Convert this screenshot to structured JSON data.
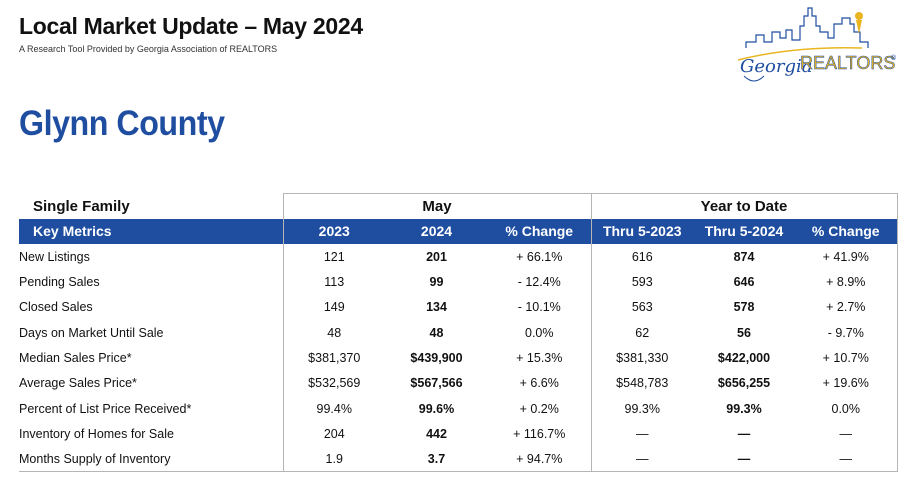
{
  "header": {
    "title": "Local Market Update – May 2024",
    "subtitle": "A Research Tool Provided by Georgia Association of REALTORS"
  },
  "logo": {
    "word1": "Georgia",
    "word2": "REALTORS",
    "trademark": "®",
    "colors": {
      "script": "#1f4ea1",
      "realtors": "#e9b521",
      "skyline": "#1f4ea1"
    }
  },
  "county": "Glynn County",
  "table": {
    "property_type": "Single Family",
    "group_month": "May",
    "group_ytd": "Year to Date",
    "columns": [
      "Key Metrics",
      "2023",
      "2024",
      "% Change",
      "Thru 5-2023",
      "Thru 5-2024",
      "% Change"
    ],
    "rows": [
      {
        "metric": "New Listings",
        "m2023": "121",
        "m2024": "201",
        "mchg": "+ 66.1%",
        "y2023": "616",
        "y2024": "874",
        "ychg": "+ 41.9%"
      },
      {
        "metric": "Pending Sales",
        "m2023": "113",
        "m2024": "99",
        "mchg": "- 12.4%",
        "y2023": "593",
        "y2024": "646",
        "ychg": "+ 8.9%"
      },
      {
        "metric": "Closed Sales",
        "m2023": "149",
        "m2024": "134",
        "mchg": "- 10.1%",
        "y2023": "563",
        "y2024": "578",
        "ychg": "+ 2.7%"
      },
      {
        "metric": "Days on Market Until Sale",
        "m2023": "48",
        "m2024": "48",
        "mchg": "0.0%",
        "y2023": "62",
        "y2024": "56",
        "ychg": "- 9.7%"
      },
      {
        "metric": "Median Sales Price*",
        "m2023": "$381,370",
        "m2024": "$439,900",
        "mchg": "+ 15.3%",
        "y2023": "$381,330",
        "y2024": "$422,000",
        "ychg": "+ 10.7%"
      },
      {
        "metric": "Average Sales Price*",
        "m2023": "$532,569",
        "m2024": "$567,566",
        "mchg": "+ 6.6%",
        "y2023": "$548,783",
        "y2024": "$656,255",
        "ychg": "+ 19.6%"
      },
      {
        "metric": "Percent of List Price Received*",
        "m2023": "99.4%",
        "m2024": "99.6%",
        "mchg": "+ 0.2%",
        "y2023": "99.3%",
        "y2024": "99.3%",
        "ychg": "0.0%"
      },
      {
        "metric": "Inventory of Homes for Sale",
        "m2023": "204",
        "m2024": "442",
        "mchg": "+ 116.7%",
        "y2023": "—",
        "y2024": "—",
        "ychg": "—"
      },
      {
        "metric": "Months Supply of Inventory",
        "m2023": "1.9",
        "m2024": "3.7",
        "mchg": "+ 94.7%",
        "y2023": "—",
        "y2024": "—",
        "ychg": "—"
      }
    ]
  }
}
